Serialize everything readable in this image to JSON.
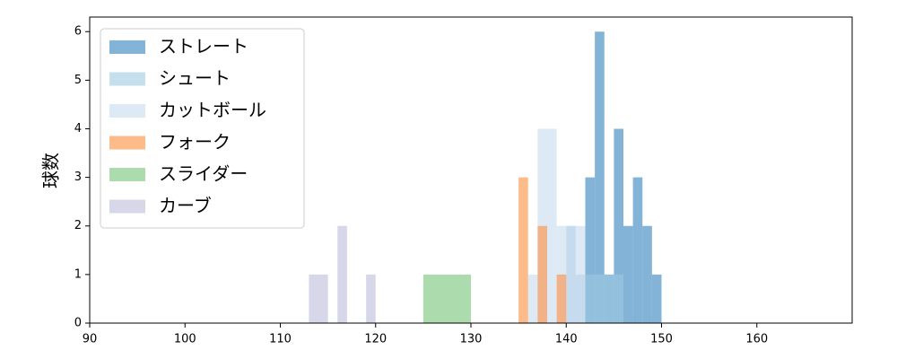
{
  "chart_data": {
    "type": "histogram",
    "ylabel": "球数",
    "xlim": [
      90,
      170
    ],
    "xticks": [
      90,
      100,
      110,
      120,
      130,
      140,
      150,
      160
    ],
    "ylim": [
      0,
      6.3
    ],
    "yticks": [
      0,
      1,
      2,
      3,
      4,
      5,
      6
    ],
    "legend": "upper left",
    "series": [
      {
        "name": "ストレート",
        "color": "#3182bd",
        "bins": [
          142,
          143,
          144,
          145,
          146,
          147,
          148,
          149,
          150
        ],
        "counts": [
          3,
          6,
          1,
          4,
          2,
          3,
          2,
          1
        ]
      },
      {
        "name": "シュート",
        "color": "#9ecae1",
        "bins": [
          140,
          141,
          142,
          143,
          144,
          145,
          146
        ],
        "counts": [
          2,
          1,
          1,
          1,
          1,
          1
        ]
      },
      {
        "name": "カットボール",
        "color": "#c6dbef",
        "bins": [
          136,
          137,
          138,
          139,
          140,
          141,
          142
        ],
        "counts": [
          1,
          4,
          4,
          2,
          2,
          2
        ]
      },
      {
        "name": "フォーク",
        "color": "#fd8d3c",
        "bins": [
          135,
          136,
          137,
          138,
          139,
          140
        ],
        "counts": [
          3,
          0,
          2,
          0,
          1
        ]
      },
      {
        "name": "スライダー",
        "color": "#74c476",
        "bins": [
          125,
          130
        ],
        "counts": [
          1
        ]
      },
      {
        "name": "カーブ",
        "color": "#bcbddc",
        "bins": [
          113,
          114,
          115,
          116,
          117,
          118,
          119,
          120
        ],
        "counts": [
          1,
          1,
          0,
          2,
          0,
          0,
          1
        ]
      }
    ]
  }
}
